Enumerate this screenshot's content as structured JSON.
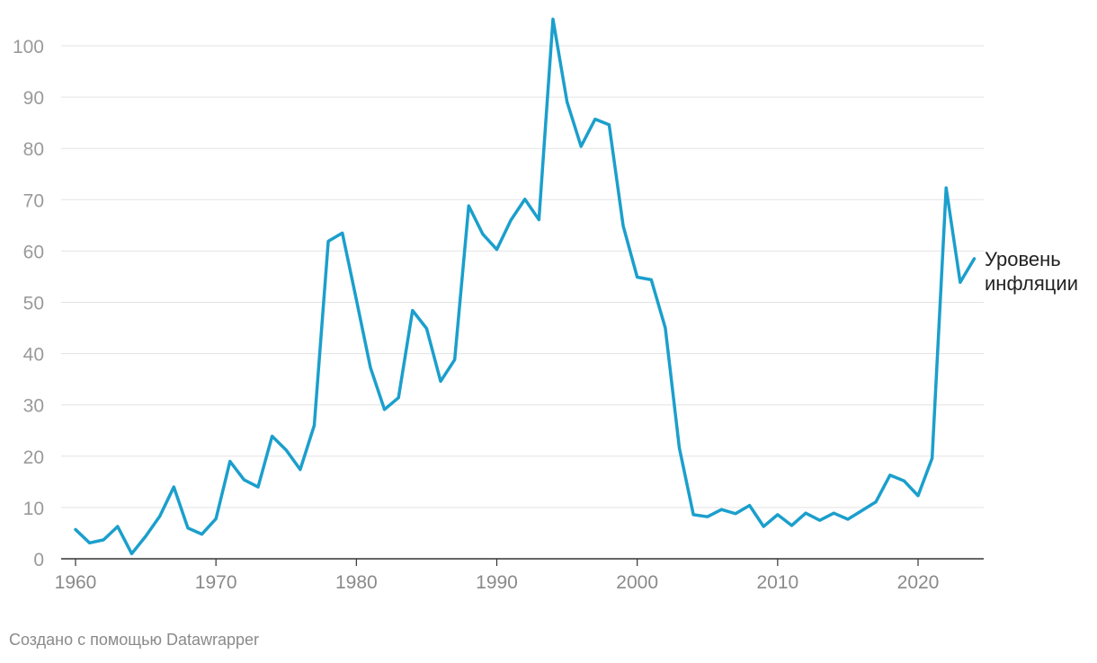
{
  "chart_data": {
    "type": "line",
    "title": "",
    "xlabel": "",
    "ylabel": "",
    "xlim": [
      1960,
      2024
    ],
    "ylim": [
      0,
      100
    ],
    "x_ticks": [
      "1960",
      "1970",
      "1980",
      "1990",
      "2000",
      "2010",
      "2020"
    ],
    "y_ticks": [
      "0",
      "10",
      "20",
      "30",
      "40",
      "50",
      "60",
      "70",
      "80",
      "90",
      "100"
    ],
    "grid": true,
    "series": [
      {
        "name": "Уровень инфляции",
        "label_lines": [
          "Уровень",
          "инфляции"
        ],
        "color": "#1b9fcc",
        "x": [
          1960,
          1961,
          1962,
          1963,
          1964,
          1965,
          1966,
          1967,
          1968,
          1969,
          1970,
          1971,
          1972,
          1973,
          1974,
          1975,
          1976,
          1977,
          1978,
          1979,
          1980,
          1981,
          1982,
          1983,
          1984,
          1985,
          1986,
          1987,
          1988,
          1989,
          1990,
          1991,
          1992,
          1993,
          1994,
          1995,
          1996,
          1997,
          1998,
          1999,
          2000,
          2001,
          2002,
          2003,
          2004,
          2005,
          2006,
          2007,
          2008,
          2009,
          2010,
          2011,
          2012,
          2013,
          2014,
          2015,
          2016,
          2017,
          2018,
          2019,
          2020,
          2021,
          2022,
          2023,
          2024
        ],
        "values": [
          5.7,
          3.1,
          3.7,
          6.3,
          1.0,
          4.4,
          8.3,
          14.0,
          6.0,
          4.8,
          7.8,
          19.0,
          15.4,
          14.0,
          23.9,
          21.2,
          17.4,
          26.0,
          61.9,
          63.5,
          50.5,
          37.3,
          29.1,
          31.4,
          48.4,
          44.9,
          34.6,
          38.8,
          68.8,
          63.3,
          60.3,
          66.0,
          70.1,
          66.1,
          105.2,
          89.1,
          80.4,
          85.7,
          84.6,
          64.9,
          54.9,
          54.4,
          45.0,
          21.6,
          8.6,
          8.2,
          9.6,
          8.8,
          10.4,
          6.3,
          8.6,
          6.5,
          8.9,
          7.5,
          8.9,
          7.7,
          9.4,
          11.1,
          16.3,
          15.2,
          12.3,
          19.6,
          72.3,
          53.9,
          58.5
        ]
      }
    ]
  },
  "footer": {
    "credit": "Создано с помощью Datawrapper"
  }
}
